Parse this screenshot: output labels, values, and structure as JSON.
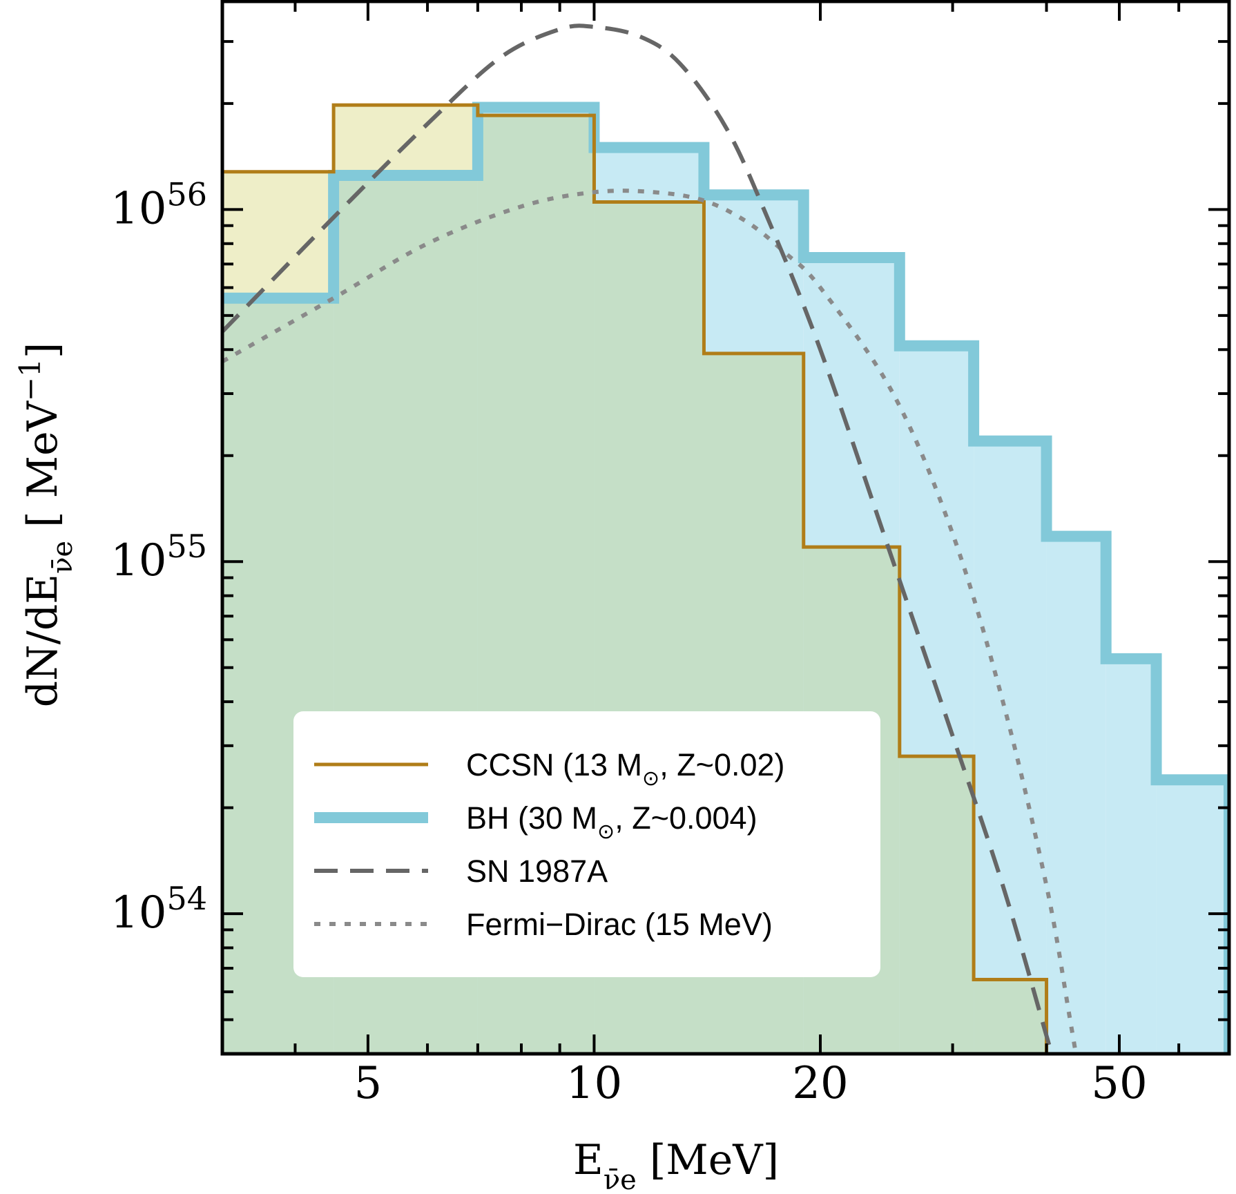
{
  "chart_data": {
    "type": "step-histogram",
    "x_scale": "log",
    "y_scale": "log",
    "xlim": [
      3.2,
      70
    ],
    "ylim": [
      4e+53,
      3.9e+56
    ],
    "x_ticks": [
      5,
      10,
      20,
      50
    ],
    "x_tick_labels": [
      "5",
      "10",
      "20",
      "50"
    ],
    "y_ticks": [
      1e+54,
      1e+55,
      1e+56
    ],
    "y_tick_labels": [
      {
        "base": "10",
        "exp": "54"
      },
      {
        "base": "10",
        "exp": "55"
      },
      {
        "base": "10",
        "exp": "56"
      }
    ],
    "xlabel": {
      "main": "E",
      "sub": "ν̄e",
      "unit": " [MeV]"
    },
    "ylabel": {
      "main": "dN/dE",
      "sub": "ν̄e",
      "unit": "   [ MeV",
      "unit_exp": "−1",
      "unit_end": "]"
    },
    "bin_edges": [
      3.2,
      4.5,
      7.0,
      10.0,
      14.0,
      19.0,
      25.5,
      32.0,
      40.0,
      48.0,
      56.0,
      70.0
    ],
    "series": [
      {
        "name": "CCSN (13 M⊙, Z~0.02)",
        "color": "#b07d18",
        "fill": "#eeeec8",
        "style": "solid",
        "values": [
          1.28e+56,
          1.98e+56,
          1.85e+56,
          1.05e+56,
          3.9e+55,
          1.1e+55,
          2.8e+54,
          6.5e+53,
          4e+53,
          null,
          null
        ]
      },
      {
        "name": "BH (30 M⊙, Z~0.004)",
        "color": "#82c9d9",
        "fill": "#c7eaf4",
        "style": "thick",
        "values": [
          5.6e+55,
          1.25e+56,
          1.95e+56,
          1.5e+56,
          1.1e+56,
          7.3e+55,
          4.1e+55,
          2.2e+55,
          1.18e+55,
          5.3e+54,
          2.4e+54
        ]
      },
      {
        "name": "SN 1987A",
        "color": "#666666",
        "style": "dashed",
        "points": [
          [
            3.2,
            4.5e+55
          ],
          [
            4.5,
            9.5e+55
          ],
          [
            6.0,
            1.75e+56
          ],
          [
            7.5,
            2.7e+56
          ],
          [
            9.0,
            3.25e+56
          ],
          [
            10.0,
            3.3e+56
          ],
          [
            11.5,
            3.1e+56
          ],
          [
            13.0,
            2.6e+56
          ],
          [
            15.0,
            1.7e+56
          ],
          [
            17.0,
            9.5e+55
          ],
          [
            20.0,
            4e+55
          ],
          [
            25.0,
            1e+55
          ],
          [
            30.0,
            3.2e+54
          ],
          [
            35.0,
            1.2e+54
          ],
          [
            40.0,
            4.5e+53
          ],
          [
            43.0,
            2.6e+53
          ]
        ]
      },
      {
        "name": "Fermi−Dirac (15 MeV)",
        "color": "#8a8a8a",
        "style": "dotted",
        "points": [
          [
            3.2,
            3.7e+55
          ],
          [
            4.5,
            5.6e+55
          ],
          [
            6.0,
            8e+55
          ],
          [
            8.0,
            1.02e+56
          ],
          [
            10.0,
            1.12e+56
          ],
          [
            12.0,
            1.12e+56
          ],
          [
            14.0,
            1.06e+56
          ],
          [
            16.0,
            9.2e+55
          ],
          [
            18.0,
            7.5e+55
          ],
          [
            20.0,
            6e+55
          ],
          [
            25.0,
            3e+55
          ],
          [
            30.0,
            1.2e+55
          ],
          [
            35.0,
            4e+54
          ],
          [
            40.0,
            1.2e+54
          ],
          [
            43.0,
            5e+53
          ],
          [
            45.0,
            2.8e+53
          ]
        ]
      }
    ],
    "legend": {
      "position": "lower-left",
      "entries": [
        {
          "text": "CCSN (13 M",
          "sub": "⊙",
          "rest": ", Z~0.02)"
        },
        {
          "text": "BH (30 M",
          "sub": "⊙",
          "rest": ", Z~0.004)"
        },
        {
          "text": "SN 1987A",
          "sub": "",
          "rest": ""
        },
        {
          "text": "Fermi−Dirac (15 MeV)",
          "sub": "",
          "rest": ""
        }
      ]
    },
    "overlap_fill": "#c5dfc7"
  }
}
